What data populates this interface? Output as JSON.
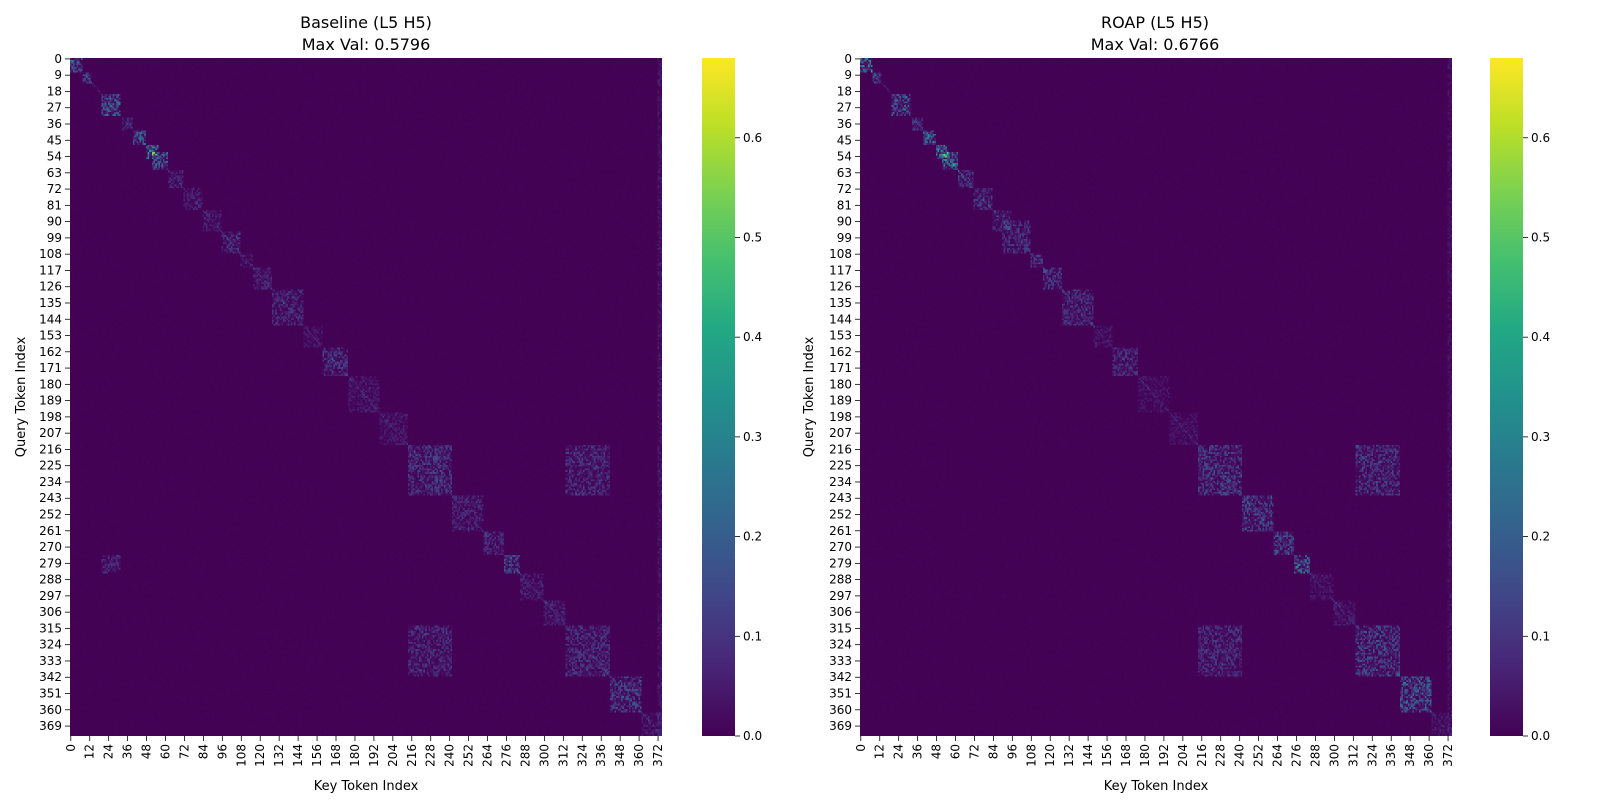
{
  "colormap": "viridis",
  "colors": {
    "low": "#440154",
    "high": "#fde725"
  },
  "chart_data": [
    {
      "type": "heatmap",
      "title_line1": "Baseline (L5 H5)",
      "title_line2": "Max Val: 0.5796",
      "xlabel": "Key Token Index",
      "ylabel": "Query Token Index",
      "n": 375,
      "max_val": 0.5796,
      "x_ticks": [
        "0",
        "12",
        "24",
        "36",
        "48",
        "60",
        "72",
        "84",
        "96",
        "108",
        "120",
        "132",
        "144",
        "156",
        "168",
        "180",
        "192",
        "204",
        "216",
        "228",
        "240",
        "252",
        "264",
        "276",
        "288",
        "300",
        "312",
        "324",
        "336",
        "348",
        "360",
        "372"
      ],
      "y_ticks": [
        "0",
        "9",
        "18",
        "27",
        "36",
        "45",
        "54",
        "63",
        "72",
        "81",
        "90",
        "99",
        "108",
        "117",
        "126",
        "135",
        "144",
        "153",
        "162",
        "171",
        "180",
        "189",
        "198",
        "207",
        "216",
        "225",
        "234",
        "243",
        "252",
        "261",
        "270",
        "279",
        "288",
        "297",
        "306",
        "315",
        "324",
        "333",
        "342",
        "351",
        "360",
        "369"
      ],
      "colorbar": {
        "min": 0.0,
        "max": 0.68,
        "ticks": [
          "0.0",
          "0.1",
          "0.2",
          "0.3",
          "0.4",
          "0.5",
          "0.6"
        ]
      },
      "blocks": [
        [
          0,
          8,
          0,
          8,
          0.35
        ],
        [
          8,
          14,
          8,
          14,
          0.2
        ],
        [
          20,
          32,
          20,
          32,
          0.28
        ],
        [
          33,
          40,
          33,
          40,
          0.14
        ],
        [
          40,
          48,
          40,
          48,
          0.3
        ],
        [
          48,
          56,
          48,
          56,
          0.42
        ],
        [
          52,
          62,
          52,
          62,
          0.32
        ],
        [
          62,
          72,
          62,
          72,
          0.12
        ],
        [
          72,
          84,
          72,
          84,
          0.1
        ],
        [
          84,
          96,
          84,
          96,
          0.1
        ],
        [
          96,
          108,
          96,
          108,
          0.16
        ],
        [
          108,
          116,
          108,
          116,
          0.1
        ],
        [
          116,
          128,
          116,
          128,
          0.12
        ],
        [
          128,
          148,
          128,
          148,
          0.14
        ],
        [
          148,
          160,
          148,
          160,
          0.07
        ],
        [
          160,
          176,
          160,
          176,
          0.17
        ],
        [
          176,
          196,
          176,
          196,
          0.08
        ],
        [
          196,
          214,
          196,
          214,
          0.08
        ],
        [
          214,
          242,
          214,
          242,
          0.18
        ],
        [
          214,
          242,
          314,
          342,
          0.16
        ],
        [
          314,
          342,
          214,
          242,
          0.14
        ],
        [
          314,
          342,
          314,
          342,
          0.16
        ],
        [
          242,
          262,
          242,
          262,
          0.12
        ],
        [
          262,
          275,
          262,
          275,
          0.15
        ],
        [
          275,
          285,
          275,
          285,
          0.26
        ],
        [
          285,
          300,
          285,
          300,
          0.1
        ],
        [
          300,
          314,
          300,
          314,
          0.1
        ],
        [
          342,
          362,
          342,
          362,
          0.22
        ],
        [
          362,
          375,
          362,
          375,
          0.08
        ],
        [
          275,
          285,
          20,
          32,
          0.14
        ],
        [
          0,
          375,
          372,
          375,
          0.08
        ]
      ]
    },
    {
      "type": "heatmap",
      "title_line1": "ROAP (L5 H5)",
      "title_line2": "Max Val: 0.6766",
      "xlabel": "Key Token Index",
      "ylabel": "Query Token Index",
      "n": 375,
      "max_val": 0.6766,
      "x_ticks": [
        "0",
        "12",
        "24",
        "36",
        "48",
        "60",
        "72",
        "84",
        "96",
        "108",
        "120",
        "132",
        "144",
        "156",
        "168",
        "180",
        "192",
        "204",
        "216",
        "228",
        "240",
        "252",
        "264",
        "276",
        "288",
        "300",
        "312",
        "324",
        "336",
        "348",
        "360",
        "372"
      ],
      "y_ticks": [
        "0",
        "9",
        "18",
        "27",
        "36",
        "45",
        "54",
        "63",
        "72",
        "81",
        "90",
        "99",
        "108",
        "117",
        "126",
        "135",
        "144",
        "153",
        "162",
        "171",
        "180",
        "189",
        "198",
        "207",
        "216",
        "225",
        "234",
        "243",
        "252",
        "261",
        "270",
        "279",
        "288",
        "297",
        "306",
        "315",
        "324",
        "333",
        "342",
        "351",
        "360",
        "369"
      ],
      "colorbar": {
        "min": 0.0,
        "max": 0.68,
        "ticks": [
          "0.0",
          "0.1",
          "0.2",
          "0.3",
          "0.4",
          "0.5",
          "0.6"
        ]
      },
      "blocks": [
        [
          0,
          8,
          0,
          8,
          0.45
        ],
        [
          8,
          14,
          8,
          14,
          0.25
        ],
        [
          20,
          32,
          20,
          32,
          0.3
        ],
        [
          33,
          40,
          33,
          40,
          0.16
        ],
        [
          40,
          48,
          40,
          48,
          0.35
        ],
        [
          48,
          56,
          48,
          56,
          0.5
        ],
        [
          52,
          62,
          52,
          62,
          0.4
        ],
        [
          62,
          72,
          62,
          72,
          0.22
        ],
        [
          72,
          84,
          72,
          84,
          0.18
        ],
        [
          84,
          96,
          84,
          96,
          0.14
        ],
        [
          90,
          108,
          90,
          108,
          0.16
        ],
        [
          108,
          116,
          108,
          116,
          0.18
        ],
        [
          116,
          128,
          116,
          128,
          0.2
        ],
        [
          128,
          148,
          128,
          148,
          0.16
        ],
        [
          148,
          160,
          148,
          160,
          0.07
        ],
        [
          160,
          176,
          160,
          176,
          0.14
        ],
        [
          176,
          196,
          176,
          196,
          0.06
        ],
        [
          196,
          214,
          196,
          214,
          0.06
        ],
        [
          214,
          242,
          214,
          242,
          0.2
        ],
        [
          214,
          242,
          314,
          342,
          0.18
        ],
        [
          314,
          342,
          214,
          242,
          0.16
        ],
        [
          314,
          342,
          314,
          342,
          0.22
        ],
        [
          242,
          262,
          242,
          262,
          0.22
        ],
        [
          262,
          275,
          262,
          275,
          0.24
        ],
        [
          275,
          285,
          275,
          285,
          0.4
        ],
        [
          285,
          300,
          285,
          300,
          0.08
        ],
        [
          300,
          314,
          300,
          314,
          0.08
        ],
        [
          342,
          362,
          342,
          362,
          0.3
        ],
        [
          362,
          375,
          362,
          375,
          0.08
        ],
        [
          0,
          375,
          372,
          375,
          0.06
        ]
      ]
    }
  ]
}
